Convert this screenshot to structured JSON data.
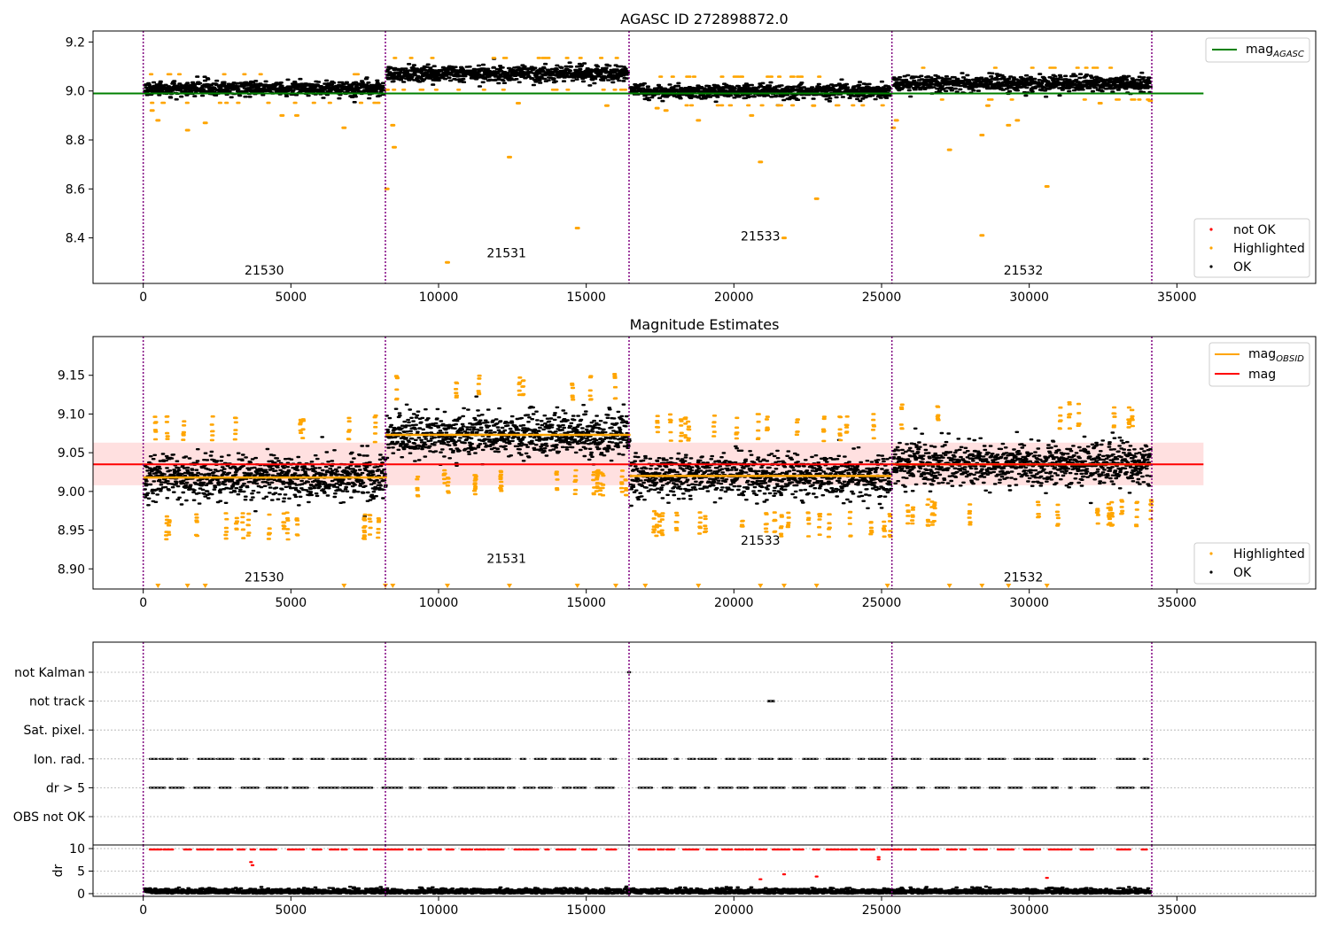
{
  "chart_data": [
    {
      "type": "scatter",
      "title": "AGASC ID 272898872.0",
      "xlabel": "",
      "ylabel": "",
      "xlim": [
        -1700,
        39700
      ],
      "ylim": [
        8.214,
        9.245
      ],
      "xticks": [
        0,
        5000,
        10000,
        15000,
        20000,
        25000,
        30000,
        35000
      ],
      "xtick_labels": [
        "0",
        "5000",
        "10000",
        "15000",
        "20000",
        "25000",
        "30000",
        "35000"
      ],
      "yticks": [
        8.4,
        8.6,
        8.8,
        9.0,
        9.2
      ],
      "ytick_labels": [
        "8.4",
        "8.6",
        "8.8",
        "9.0",
        "9.2"
      ],
      "grid": false,
      "obs_boundaries": [
        0,
        8200,
        16450,
        25350,
        34150
      ],
      "observations": [
        {
          "label": "21530",
          "x": 4100,
          "y": 8.25,
          "start": 0,
          "end": 8200,
          "ok_mean": 9.01,
          "ok_spread": 0.045
        },
        {
          "label": "21531",
          "x": 12300,
          "y": 8.32,
          "start": 8200,
          "end": 16450,
          "ok_mean": 9.07,
          "ok_spread": 0.05
        },
        {
          "label": "21533",
          "x": 20900,
          "y": 8.39,
          "start": 16450,
          "end": 25350,
          "ok_mean": 9.0,
          "ok_spread": 0.045
        },
        {
          "label": "21532",
          "x": 29800,
          "y": 8.25,
          "start": 25350,
          "end": 34150,
          "ok_mean": 9.03,
          "ok_spread": 0.05
        }
      ],
      "highlighted_outliers": [
        {
          "x": 300,
          "y": 8.92
        },
        {
          "x": 500,
          "y": 8.88
        },
        {
          "x": 1500,
          "y": 8.84
        },
        {
          "x": 2100,
          "y": 8.87
        },
        {
          "x": 4700,
          "y": 8.9
        },
        {
          "x": 5200,
          "y": 8.9
        },
        {
          "x": 6800,
          "y": 8.85
        },
        {
          "x": 8250,
          "y": 8.6
        },
        {
          "x": 8450,
          "y": 8.86
        },
        {
          "x": 8500,
          "y": 8.77
        },
        {
          "x": 10300,
          "y": 8.3
        },
        {
          "x": 12400,
          "y": 8.73
        },
        {
          "x": 12700,
          "y": 8.95
        },
        {
          "x": 14700,
          "y": 8.44
        },
        {
          "x": 15700,
          "y": 8.94
        },
        {
          "x": 17400,
          "y": 8.93
        },
        {
          "x": 17700,
          "y": 8.92
        },
        {
          "x": 18800,
          "y": 8.88
        },
        {
          "x": 20600,
          "y": 8.9
        },
        {
          "x": 20900,
          "y": 8.71
        },
        {
          "x": 21700,
          "y": 8.4
        },
        {
          "x": 22700,
          "y": 8.94
        },
        {
          "x": 22800,
          "y": 8.56
        },
        {
          "x": 25400,
          "y": 8.85
        },
        {
          "x": 25500,
          "y": 8.88
        },
        {
          "x": 27300,
          "y": 8.76
        },
        {
          "x": 28400,
          "y": 8.82
        },
        {
          "x": 28400,
          "y": 8.41
        },
        {
          "x": 28600,
          "y": 8.94
        },
        {
          "x": 29300,
          "y": 8.86
        },
        {
          "x": 29600,
          "y": 8.88
        },
        {
          "x": 30600,
          "y": 8.61
        },
        {
          "x": 32400,
          "y": 8.95
        },
        {
          "x": 34100,
          "y": 8.96
        }
      ],
      "series": [
        {
          "name": "mag_AGASC",
          "type": "line",
          "color": "#008000",
          "x": [
            -1700,
            35900
          ],
          "values": [
            8.99,
            8.99
          ]
        }
      ],
      "legends": [
        {
          "placement": "upper right",
          "entries": [
            {
              "label": "mag",
              "sub": "AGASC",
              "color": "#008000",
              "kind": "line"
            }
          ]
        },
        {
          "placement": "lower right",
          "entries": [
            {
              "label": "not OK",
              "color": "#ff0000",
              "kind": "dot"
            },
            {
              "label": "Highlighted",
              "color": "#ffa500",
              "kind": "dot"
            },
            {
              "label": "OK",
              "color": "#000000",
              "kind": "dot"
            }
          ]
        }
      ]
    },
    {
      "type": "scatter",
      "title": "Magnitude Estimates",
      "xlabel": "",
      "ylabel": "",
      "xlim": [
        -1700,
        39700
      ],
      "ylim": [
        8.874,
        9.2
      ],
      "xticks": [
        0,
        5000,
        10000,
        15000,
        20000,
        25000,
        30000,
        35000
      ],
      "xtick_labels": [
        "0",
        "5000",
        "10000",
        "15000",
        "20000",
        "25000",
        "30000",
        "35000"
      ],
      "yticks": [
        8.9,
        8.95,
        9.0,
        9.05,
        9.1,
        9.15
      ],
      "ytick_labels": [
        "8.90",
        "8.95",
        "9.00",
        "9.05",
        "9.10",
        "9.15"
      ],
      "grid": false,
      "obs_boundaries": [
        0,
        8200,
        16450,
        25350,
        34150
      ],
      "mag": 9.035,
      "mag_band": [
        9.008,
        9.063
      ],
      "observations": [
        {
          "label": "21530",
          "x": 4100,
          "y": 8.884,
          "start": 0,
          "end": 8250,
          "mag_obsid": 9.018
        },
        {
          "label": "21531",
          "x": 12300,
          "y": 8.908,
          "start": 8200,
          "end": 16500,
          "mag_obsid": 9.073
        },
        {
          "label": "21533",
          "x": 20900,
          "y": 8.931,
          "start": 16450,
          "end": 25350,
          "mag_obsid": 9.02
        },
        {
          "label": "21532",
          "x": 29800,
          "y": 8.884,
          "start": 25350,
          "end": 34150,
          "mag_obsid": 9.035
        }
      ],
      "offscale_below": [
        500,
        1500,
        2100,
        6800,
        8200,
        8450,
        10300,
        12400,
        14700,
        16000,
        17000,
        18800,
        20900,
        21700,
        22800,
        25200,
        27300,
        28400,
        29300,
        30600
      ],
      "series": [
        {
          "name": "mag_OBSID",
          "type": "line",
          "color": "#ffa500"
        },
        {
          "name": "mag",
          "type": "line",
          "color": "#ff0000",
          "x": [
            -1700,
            35900
          ],
          "values": [
            9.035,
            9.035
          ]
        }
      ],
      "legends": [
        {
          "placement": "upper right",
          "entries": [
            {
              "label": "mag",
              "sub": "OBSID",
              "color": "#ffa500",
              "kind": "line"
            },
            {
              "label": "mag",
              "color": "#ff0000",
              "kind": "line"
            }
          ]
        },
        {
          "placement": "lower right",
          "entries": [
            {
              "label": "Highlighted",
              "color": "#ffa500",
              "kind": "dot"
            },
            {
              "label": "OK",
              "color": "#000000",
              "kind": "dot"
            }
          ]
        }
      ]
    },
    {
      "type": "scatter",
      "title": "",
      "xlabel": "",
      "ylabel": "",
      "xlim": [
        -1700,
        39700
      ],
      "categories": [
        "not Kalman",
        "not track",
        "Sat. pixel.",
        "Ion. rad.",
        "dr > 5",
        "OBS not OK"
      ],
      "grid": true,
      "obs_boundaries": [
        0,
        8200,
        16450,
        25350,
        34150
      ],
      "flag_segments": [
        [
          250,
          8200
        ],
        [
          8300,
          16000
        ],
        [
          16800,
          25300
        ],
        [
          25400,
          32200
        ],
        [
          33000,
          34100
        ]
      ],
      "flag_rows": [
        "Ion. rad.",
        "dr > 5"
      ],
      "not_track_x": 21200,
      "not_kalman_x": 16450
    },
    {
      "type": "scatter",
      "title": "",
      "xlabel": "",
      "ylabel": "dr",
      "xlim": [
        -1700,
        39700
      ],
      "ylim": [
        -0.6,
        10.8
      ],
      "xticks": [
        0,
        5000,
        10000,
        15000,
        20000,
        25000,
        30000,
        35000
      ],
      "xtick_labels": [
        "0",
        "5000",
        "10000",
        "15000",
        "20000",
        "25000",
        "30000",
        "35000"
      ],
      "yticks": [
        0,
        5,
        10
      ],
      "ytick_labels": [
        "0",
        "5",
        "10"
      ],
      "grid": true,
      "obs_boundaries": [
        0,
        8200,
        16450,
        25350,
        34150
      ],
      "clipped_value": 9.8,
      "red_points": [
        {
          "x": 3650,
          "y": 7.0
        },
        {
          "x": 3700,
          "y": 6.3
        },
        {
          "x": 20900,
          "y": 3.2
        },
        {
          "x": 21700,
          "y": 4.3
        },
        {
          "x": 22800,
          "y": 3.8
        },
        {
          "x": 24900,
          "y": 8.1
        },
        {
          "x": 24900,
          "y": 7.6
        },
        {
          "x": 30600,
          "y": 3.5
        }
      ]
    }
  ]
}
